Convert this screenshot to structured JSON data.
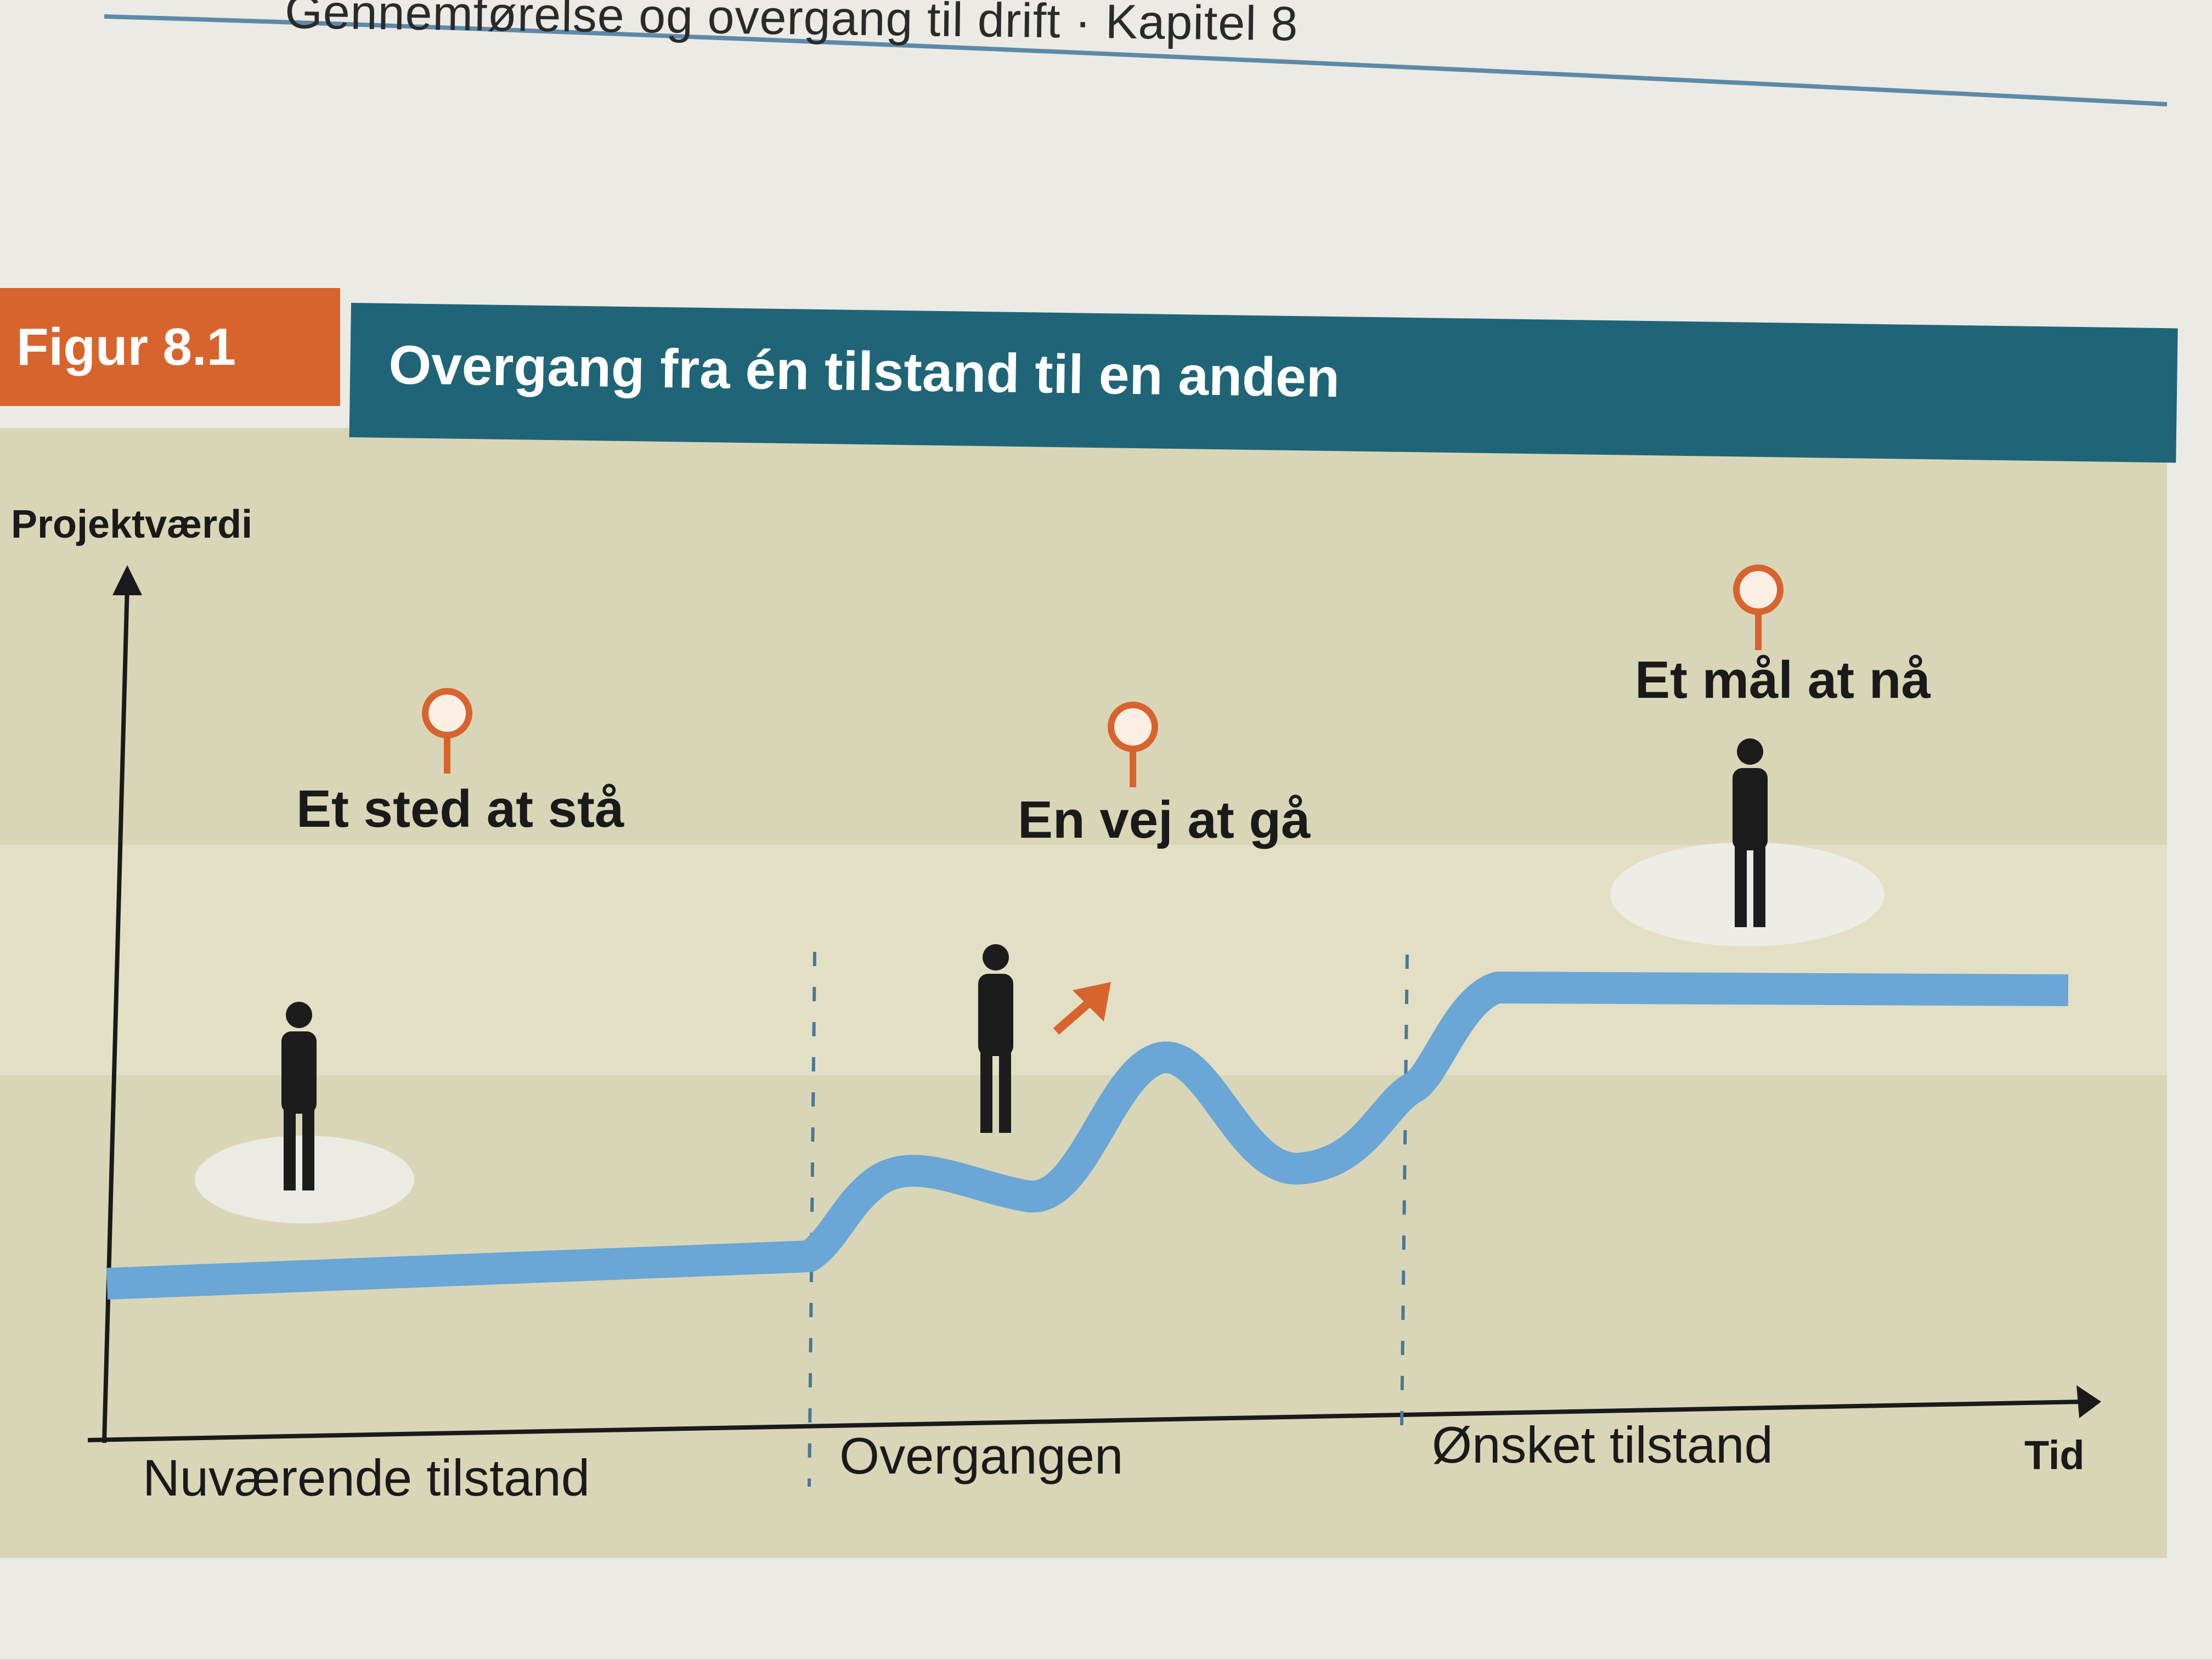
{
  "page": {
    "running_header": "Gennemførelse og overgang til drift · Kapitel 8"
  },
  "figure": {
    "label": "Figur 8.1",
    "title": "Overgang fra én tilstand til en anden"
  },
  "diagram": {
    "y_axis_title": "Projektværdi",
    "x_axis_title": "Tid",
    "phases": [
      {
        "axis_label": "Nuværende tilstand",
        "stage_title": "Et sted at stå"
      },
      {
        "axis_label": "Overgangen",
        "stage_title": "En vej at gå"
      },
      {
        "axis_label": "Ønsket tilstand",
        "stage_title": "Et mål at nå"
      }
    ]
  },
  "colors": {
    "figure_label_bg": "#d8642d",
    "title_bar_bg": "#1f6577",
    "panel_bg": "#d9d6b8",
    "path_line": "#6aa6d6",
    "pin": "#d8642d",
    "arrow": "#d8642d"
  },
  "icons": [
    "location-pin-icon",
    "person-icon",
    "arrow-up-right-icon",
    "axis-arrow-icon"
  ]
}
